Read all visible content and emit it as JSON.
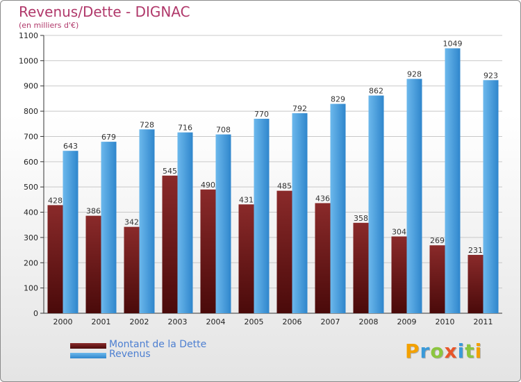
{
  "title": "Revenus/Dette - DIGNAC",
  "subtitle": "(en milliers d'€)",
  "logo_text": "Proxiti",
  "colors": {
    "title": "#b0386a",
    "debt_top": "#8a2a2a",
    "debt_bottom": "#4a0a0a",
    "revenue_top": "#6cb8ec",
    "revenue_bottom": "#2f86cc",
    "legend_text": "#4d7fd1"
  },
  "chart_data": {
    "type": "bar",
    "categories": [
      "2000",
      "2001",
      "2002",
      "2003",
      "2004",
      "2005",
      "2006",
      "2007",
      "2008",
      "2009",
      "2010",
      "2011"
    ],
    "series": [
      {
        "name": "Montant de la Dette",
        "values": [
          428,
          386,
          342,
          545,
          490,
          431,
          485,
          436,
          358,
          304,
          269,
          231
        ]
      },
      {
        "name": "Revenus",
        "values": [
          643,
          679,
          728,
          716,
          708,
          770,
          792,
          829,
          862,
          928,
          1049,
          923
        ]
      }
    ],
    "ylim": [
      0,
      1100
    ],
    "yticks": [
      0,
      100,
      200,
      300,
      400,
      500,
      600,
      700,
      800,
      900,
      1000,
      1100
    ],
    "grid": true,
    "legend_position": "bottom-left"
  }
}
